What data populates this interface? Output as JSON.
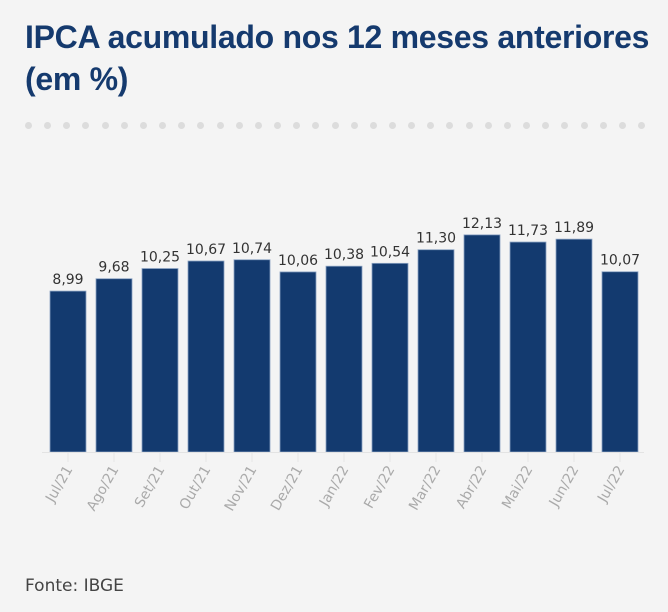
{
  "header": {
    "title": "IPCA acumulado nos 12 meses anteriores (em %)"
  },
  "footer": {
    "source": "Fonte: IBGE"
  },
  "colors": {
    "bar": "#133a6f",
    "bar_stroke": "#8aa2c2",
    "title": "#153a6e",
    "label": "#333333",
    "tick": "#aaaaaa",
    "background": "#f4f4f4"
  },
  "chart_data": {
    "type": "bar",
    "title": "IPCA acumulado nos 12 meses anteriores (em %)",
    "xlabel": "",
    "ylabel": "",
    "ylim": [
      0,
      13
    ],
    "grid": false,
    "legend": "none",
    "categories": [
      "Jul/21",
      "Ago/21",
      "Set/21",
      "Out/21",
      "Nov/21",
      "Dez/21",
      "Jan/22",
      "Fev/22",
      "Mar/22",
      "Abr/22",
      "Mai/22",
      "Jun/22",
      "Jul/22"
    ],
    "values": [
      8.99,
      9.68,
      10.25,
      10.67,
      10.74,
      10.06,
      10.38,
      10.54,
      11.3,
      12.13,
      11.73,
      11.89,
      10.07
    ],
    "value_labels": [
      "8,99",
      "9,68",
      "10,25",
      "10,67",
      "10,74",
      "10,06",
      "10,38",
      "10,54",
      "11,30",
      "12,13",
      "11,73",
      "11,89",
      "10,07"
    ]
  }
}
